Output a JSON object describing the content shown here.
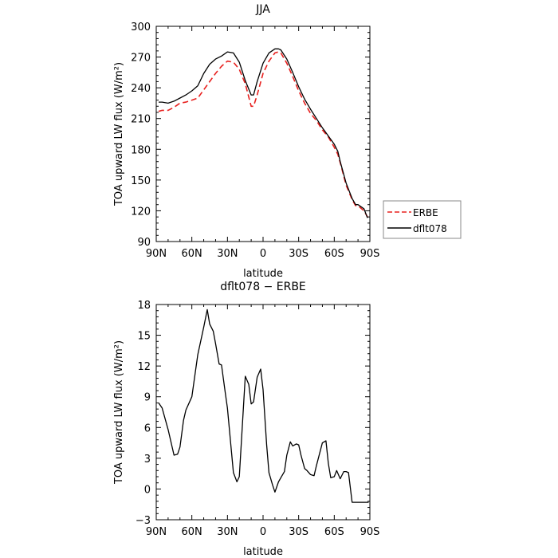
{
  "chart_data": [
    {
      "type": "line",
      "title": "JJA",
      "xlabel": "latitude",
      "ylabel": "TOA upward LW flux (W/m²)",
      "xlim": [
        90,
        -90
      ],
      "ylim": [
        90,
        300
      ],
      "xticks": [
        90,
        60,
        30,
        0,
        -30,
        -60,
        -90
      ],
      "xtick_labels": [
        "90N",
        "60N",
        "30N",
        "0",
        "30S",
        "60S",
        "90S"
      ],
      "yticks": [
        90,
        120,
        150,
        180,
        210,
        240,
        270,
        300
      ],
      "ytick_labels": [
        "90",
        "120",
        "150",
        "180",
        "210",
        "240",
        "270",
        "300"
      ],
      "grid": false,
      "legend": "right-outside",
      "series": [
        {
          "name": "ERBE",
          "style": "dashed",
          "color": "#e8201e",
          "x": [
            88,
            85,
            80,
            75,
            70,
            65,
            60,
            55,
            50,
            45,
            40,
            35,
            30,
            25,
            20,
            15,
            10,
            8,
            5,
            0,
            -5,
            -10,
            -13,
            -15,
            -20,
            -25,
            -30,
            -35,
            -40,
            -45,
            -50,
            -55,
            -60,
            -63,
            -65,
            -70,
            -75,
            -78,
            -80,
            -85,
            -88
          ],
          "y": [
            217,
            218,
            218,
            221,
            225,
            226,
            228,
            230,
            238,
            246,
            254,
            261,
            266,
            265,
            258,
            244,
            222,
            222,
            233,
            254,
            266,
            274,
            275,
            274,
            264,
            251,
            237,
            225,
            215,
            208,
            199,
            192,
            182,
            175,
            167,
            145,
            131,
            125,
            125,
            120,
            114
          ]
        },
        {
          "name": "dflt078",
          "style": "solid",
          "color": "#000000",
          "x": [
            88,
            85,
            80,
            75,
            70,
            65,
            60,
            55,
            50,
            45,
            40,
            35,
            30,
            25,
            20,
            15,
            10,
            8,
            5,
            0,
            -5,
            -10,
            -13,
            -15,
            -20,
            -25,
            -30,
            -35,
            -40,
            -45,
            -50,
            -55,
            -60,
            -63,
            -65,
            -70,
            -75,
            -78,
            -80,
            -85,
            -88
          ],
          "y": [
            226,
            226,
            225,
            227,
            230,
            233,
            237,
            242,
            254,
            263,
            268,
            271,
            275,
            274,
            265,
            247,
            233,
            233,
            246,
            264,
            274,
            278,
            278,
            277,
            268,
            255,
            241,
            229,
            219,
            210,
            201,
            193,
            185,
            178,
            168,
            147,
            132,
            126,
            126,
            122,
            113
          ]
        }
      ]
    },
    {
      "type": "line",
      "title": "dflt078 − ERBE",
      "xlabel": "latitude",
      "ylabel": "TOA upward LW flux (W/m²)",
      "xlim": [
        90,
        -90
      ],
      "ylim": [
        -3,
        18
      ],
      "xticks": [
        90,
        60,
        30,
        0,
        -30,
        -60,
        -90
      ],
      "xtick_labels": [
        "90N",
        "60N",
        "30N",
        "0",
        "30S",
        "60S",
        "90S"
      ],
      "yticks": [
        -3,
        0,
        3,
        6,
        9,
        12,
        15,
        18
      ],
      "ytick_labels": [
        "−3",
        "0",
        "3",
        "6",
        "9",
        "12",
        "15",
        "18"
      ],
      "grid": false,
      "series": [
        {
          "style": "solid",
          "color": "#000000",
          "x": [
            88,
            85,
            80,
            75,
            72,
            70,
            67,
            65,
            60,
            55,
            50,
            47,
            45,
            42,
            40,
            37,
            35,
            32,
            30,
            25,
            22,
            20,
            15,
            12,
            10,
            8,
            5,
            2,
            0,
            -3,
            -5,
            -8,
            -10,
            -13,
            -15,
            -18,
            -20,
            -23,
            -25,
            -28,
            -30,
            -32,
            -35,
            -37,
            -40,
            -43,
            -45,
            -50,
            -53,
            -55,
            -57,
            -60,
            -62,
            -65,
            -68,
            -70,
            -72,
            -75,
            -77,
            -80,
            -83,
            -85,
            -88,
            -89
          ],
          "y": [
            8.4,
            7.9,
            5.8,
            3.3,
            3.4,
            4.1,
            6.7,
            7.7,
            9.0,
            13.1,
            15.8,
            17.5,
            16.1,
            15.4,
            14.2,
            12.2,
            12.1,
            9.5,
            7.9,
            1.6,
            0.7,
            1.2,
            11.0,
            10.2,
            8.3,
            8.5,
            10.9,
            11.7,
            9.7,
            4.3,
            1.6,
            0.4,
            -0.3,
            0.7,
            1.1,
            1.7,
            3.3,
            4.6,
            4.2,
            4.4,
            4.3,
            3.3,
            2.0,
            1.8,
            1.4,
            1.3,
            2.3,
            4.5,
            4.7,
            2.5,
            1.1,
            1.2,
            1.8,
            1.0,
            1.7,
            1.7,
            1.6,
            -1.3,
            -1.3,
            -1.3,
            -1.3,
            -1.3,
            -1.3,
            -1.3
          ]
        }
      ]
    }
  ]
}
